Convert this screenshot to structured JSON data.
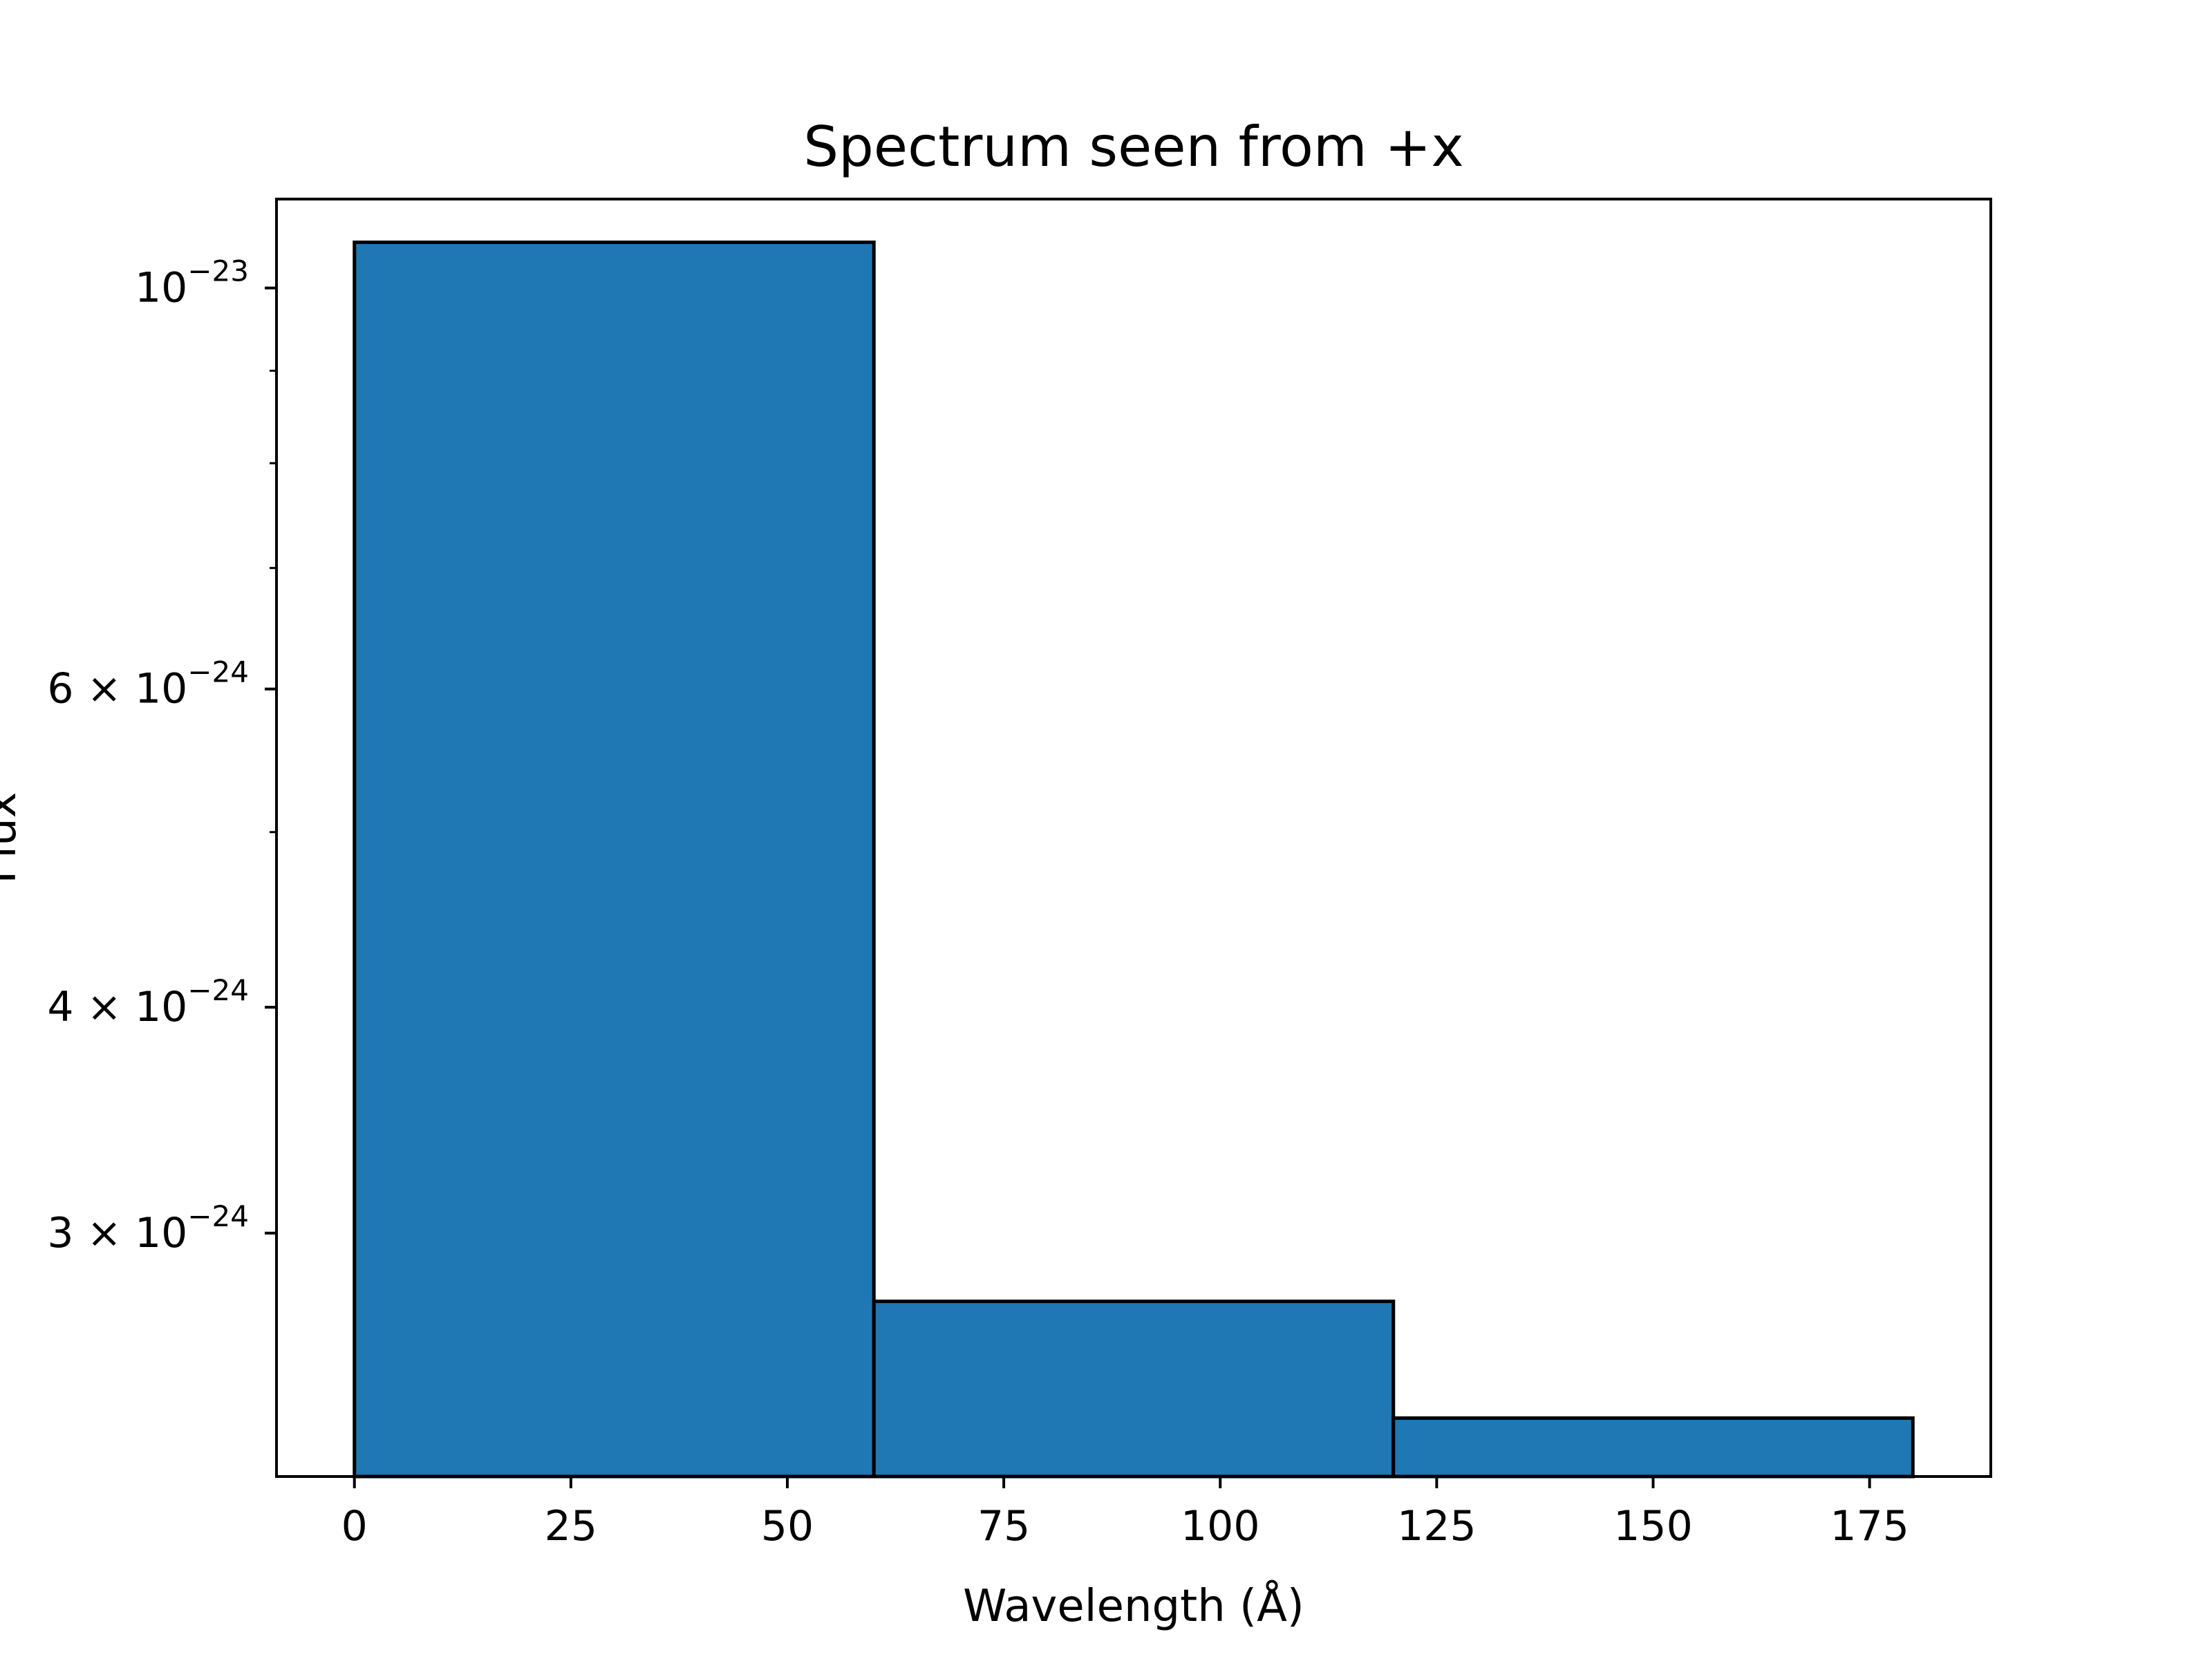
{
  "chart_data": {
    "type": "bar",
    "title": "Spectrum seen from +x",
    "xlabel": "Wavelength (Å)",
    "ylabel": "Flux",
    "yscale": "log",
    "grid": false,
    "legend": "none",
    "bars": [
      {
        "x_start": 0,
        "x_end": 60,
        "value": 1.06e-23
      },
      {
        "x_start": 60,
        "x_end": 120,
        "value": 2.75e-24
      },
      {
        "x_start": 120,
        "x_end": 180,
        "value": 2.37e-24
      }
    ],
    "xlim": [
      -9,
      189
    ],
    "ylim": [
      2.2e-24,
      1.12e-23
    ],
    "x_ticks": [
      {
        "value": 0,
        "label": "0"
      },
      {
        "value": 25,
        "label": "25"
      },
      {
        "value": 50,
        "label": "50"
      },
      {
        "value": 75,
        "label": "75"
      },
      {
        "value": 100,
        "label": "100"
      },
      {
        "value": 125,
        "label": "125"
      },
      {
        "value": 150,
        "label": "150"
      },
      {
        "value": 175,
        "label": "175"
      }
    ],
    "y_major_ticks": [
      {
        "value": 1e-23,
        "mantissa": "",
        "base": "10",
        "exponent": "−23"
      },
      {
        "value": 6e-24,
        "mantissa": "6 × ",
        "base": "10",
        "exponent": "−24"
      },
      {
        "value": 4e-24,
        "mantissa": "4 × ",
        "base": "10",
        "exponent": "−24"
      },
      {
        "value": 3e-24,
        "mantissa": "3 × ",
        "base": "10",
        "exponent": "−24"
      }
    ],
    "y_minor_ticks": [
      5e-24,
      7e-24,
      8e-24,
      9e-24
    ],
    "colors": {
      "bar_fill": "#1f77b4",
      "bar_edge": "#000000",
      "axes": "#000000"
    }
  }
}
